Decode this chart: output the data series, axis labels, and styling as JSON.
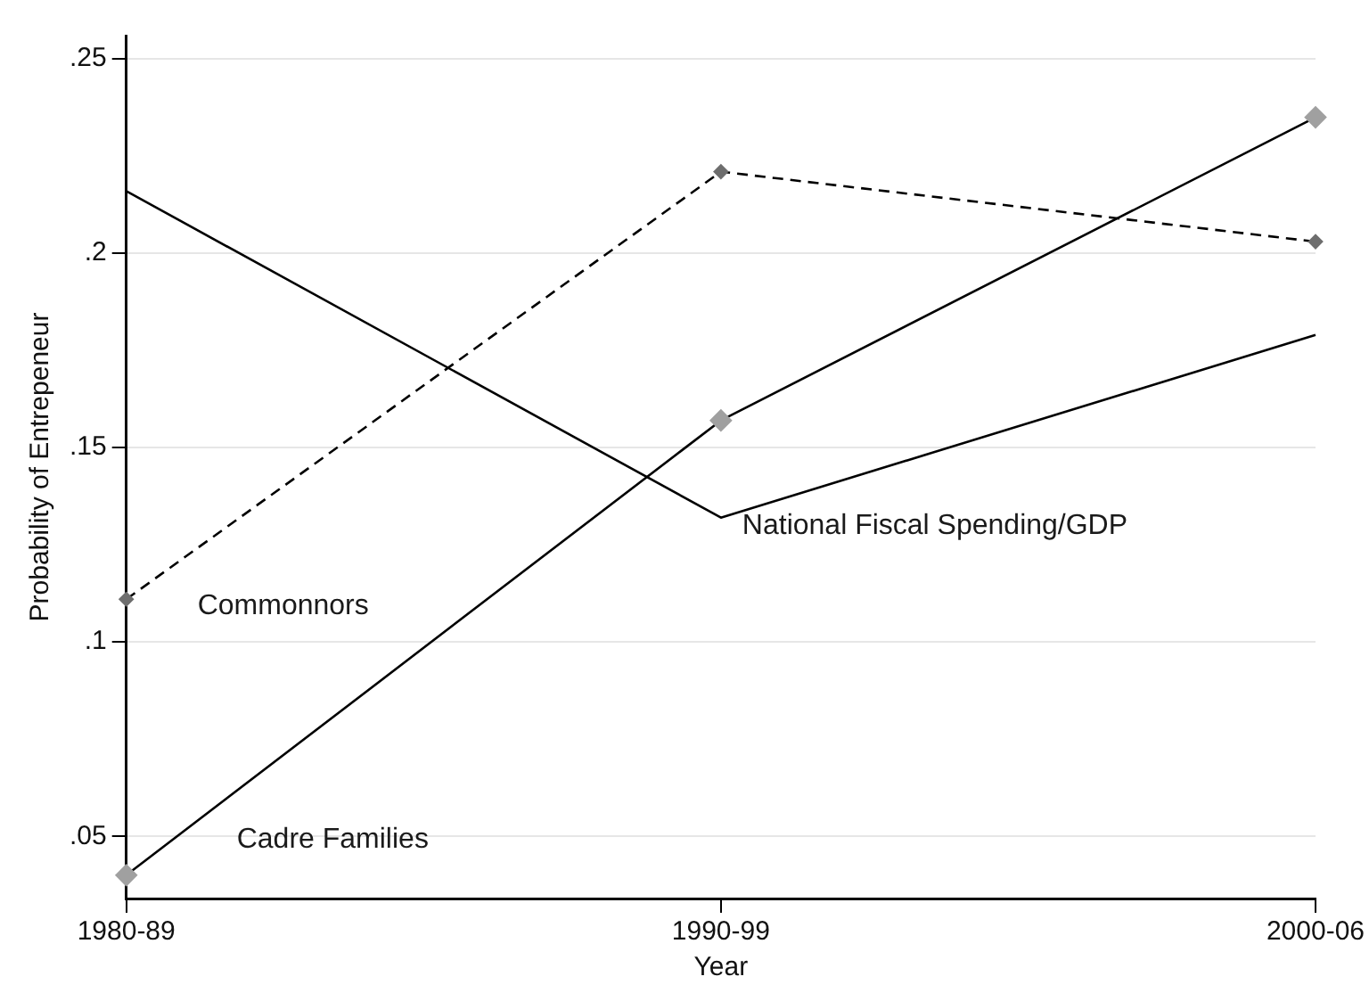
{
  "chart_data": {
    "type": "line",
    "xlabel": "Year",
    "ylabel": "Probability of Entrepeneur",
    "categories": [
      "1980-89",
      "1990-99",
      "2000-06"
    ],
    "series": [
      {
        "name": "Commonnors",
        "color": "#000000",
        "values": [
          0.111,
          0.221,
          0.203
        ],
        "marker": "diamond",
        "line_style": "dashed"
      },
      {
        "name": "Cadre Families",
        "color": "#000000",
        "values": [
          0.04,
          0.157,
          0.235
        ],
        "marker": "diamond",
        "line_style": "solid"
      },
      {
        "name": "National Fiscal Spending/GDP",
        "color": "#000000",
        "values": [
          0.216,
          0.132,
          0.179
        ],
        "marker": "none",
        "line_style": "solid"
      }
    ],
    "ylim": [
      0.034,
      0.256
    ],
    "yticks": [
      {
        "value": 0.05,
        "label": ".05"
      },
      {
        "value": 0.1,
        "label": ".1"
      },
      {
        "value": 0.15,
        "label": ".15"
      },
      {
        "value": 0.2,
        "label": ".2"
      },
      {
        "value": 0.25,
        "label": ".25"
      }
    ],
    "grid": "y",
    "legend": false
  }
}
